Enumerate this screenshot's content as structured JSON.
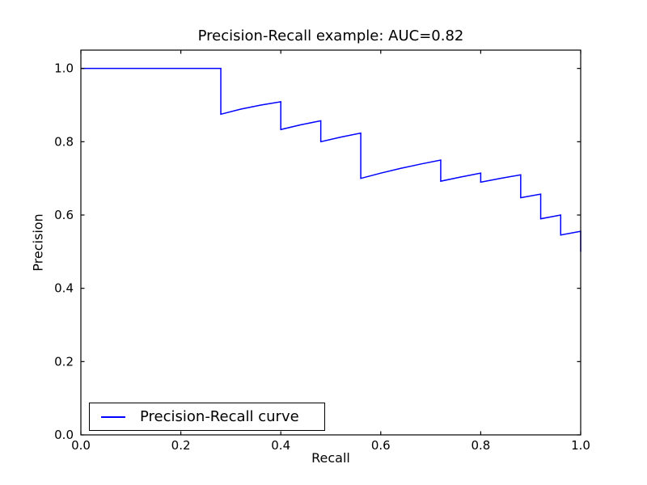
{
  "figure": {
    "background": "#ffffff",
    "frame_color": "#000000"
  },
  "chart_data": {
    "type": "line",
    "title": "Precision-Recall example: AUC=0.82",
    "xlabel": "Recall",
    "ylabel": "Precision",
    "xlim": [
      0.0,
      1.0
    ],
    "ylim": [
      0.0,
      1.05
    ],
    "xticks": [
      0.0,
      0.2,
      0.4,
      0.6,
      0.8,
      1.0
    ],
    "yticks": [
      0.0,
      0.2,
      0.4,
      0.6,
      0.8,
      1.0
    ],
    "grid": false,
    "auc": 0.82,
    "legend": {
      "position": "lower left",
      "entries": [
        {
          "label": "Precision-Recall curve",
          "color": "#0000ff"
        }
      ]
    },
    "series": [
      {
        "name": "Precision-Recall curve",
        "color": "#0000ff",
        "x": [
          0.0,
          0.28,
          0.28,
          0.32,
          0.36,
          0.4,
          0.4,
          0.44,
          0.48,
          0.48,
          0.52,
          0.56,
          0.56,
          0.56,
          0.56,
          0.6,
          0.64,
          0.68,
          0.72,
          0.72,
          0.72,
          0.76,
          0.8,
          0.8,
          0.84,
          0.88,
          0.88,
          0.88,
          0.88,
          0.92,
          0.92,
          0.92,
          0.92,
          0.92,
          0.96,
          0.96,
          0.96,
          0.96,
          0.96,
          1.0,
          1.0,
          1.0,
          1.0,
          1.0,
          1.0
        ],
        "y": [
          1.0,
          1.0,
          0.875,
          0.8889,
          0.9,
          0.9091,
          0.8333,
          0.8462,
          0.8571,
          0.8,
          0.8125,
          0.8235,
          0.7778,
          0.7368,
          0.7,
          0.7143,
          0.7273,
          0.7391,
          0.75,
          0.72,
          0.6923,
          0.7037,
          0.7143,
          0.6897,
          0.7,
          0.7097,
          0.6875,
          0.6667,
          0.6471,
          0.6571,
          0.6389,
          0.6216,
          0.6053,
          0.5897,
          0.6,
          0.5854,
          0.5714,
          0.5581,
          0.5455,
          0.5556,
          0.5435,
          0.5319,
          0.5208,
          0.5102,
          0.5
        ]
      }
    ]
  }
}
